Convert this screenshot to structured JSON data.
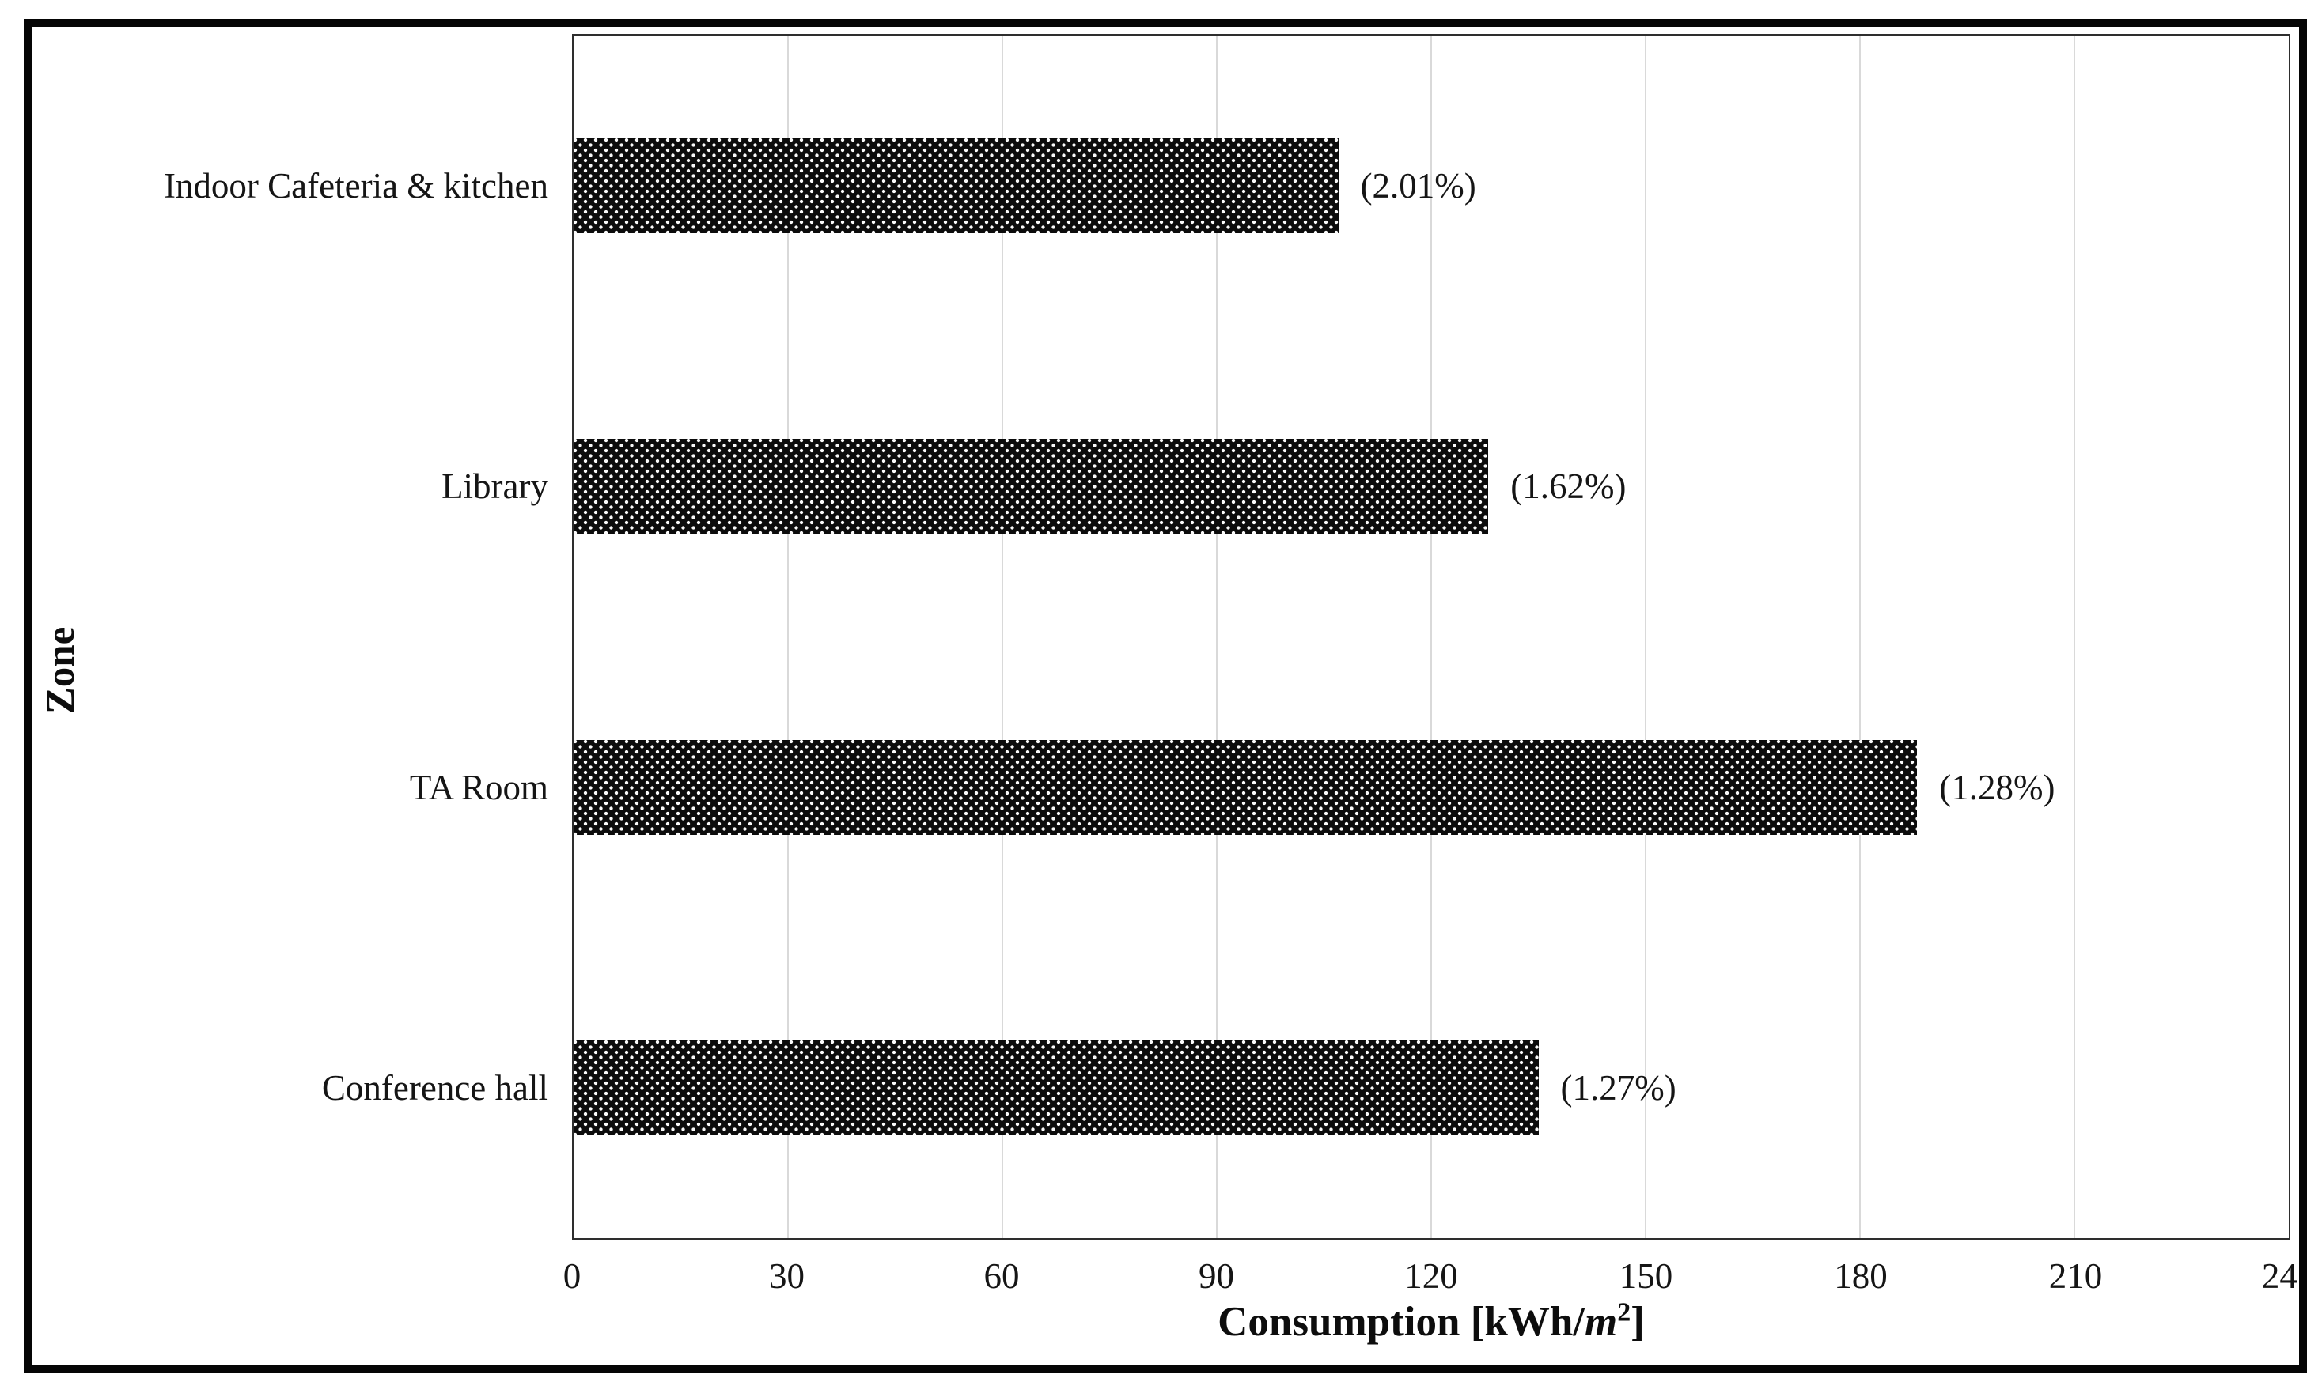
{
  "chart_data": {
    "type": "bar",
    "orientation": "horizontal",
    "title": "",
    "categories": [
      "Indoor Cafeteria & kitchen",
      "Library",
      "TA Room",
      "Conference hall"
    ],
    "values": [
      107,
      128,
      188,
      135
    ],
    "bar_labels": [
      "(2.01%)",
      "(1.62%)",
      "(1.28%)",
      "(1.27%)"
    ],
    "xlabel": "Consumption [kWh/m²]",
    "xlabel_parts": {
      "prefix": "Consumption [kWh/",
      "italic": "m",
      "sup": "2",
      "suffix": "]"
    },
    "ylabel": "Zone",
    "xlim": [
      0,
      240
    ],
    "grid_interval": 30,
    "grid": "vertical light-gray gridlines every 30 units",
    "legend": "none",
    "x_ticks": [
      {
        "label": "0",
        "value": 0
      },
      {
        "label": "30",
        "value": 30
      },
      {
        "label": "60",
        "value": 60
      },
      {
        "label": "90",
        "value": 90
      },
      {
        "label": "120",
        "value": 120
      },
      {
        "label": "150",
        "value": 150
      },
      {
        "label": "180",
        "value": 180
      },
      {
        "label": "210",
        "value": 210
      },
      {
        "label": "24",
        "value": 238.5,
        "note": "label '240' truncated at figure right edge"
      }
    ],
    "bar_style": {
      "fill": "#0c0c0c",
      "pattern": "white-dot-lattice",
      "dot_color": "#fafafa"
    },
    "colors": {
      "background": "#ffffff",
      "text": "#151515",
      "gridline": "#d9d9d9",
      "plot_border": "#2e2e2e",
      "outer_frame": "#050505"
    }
  }
}
